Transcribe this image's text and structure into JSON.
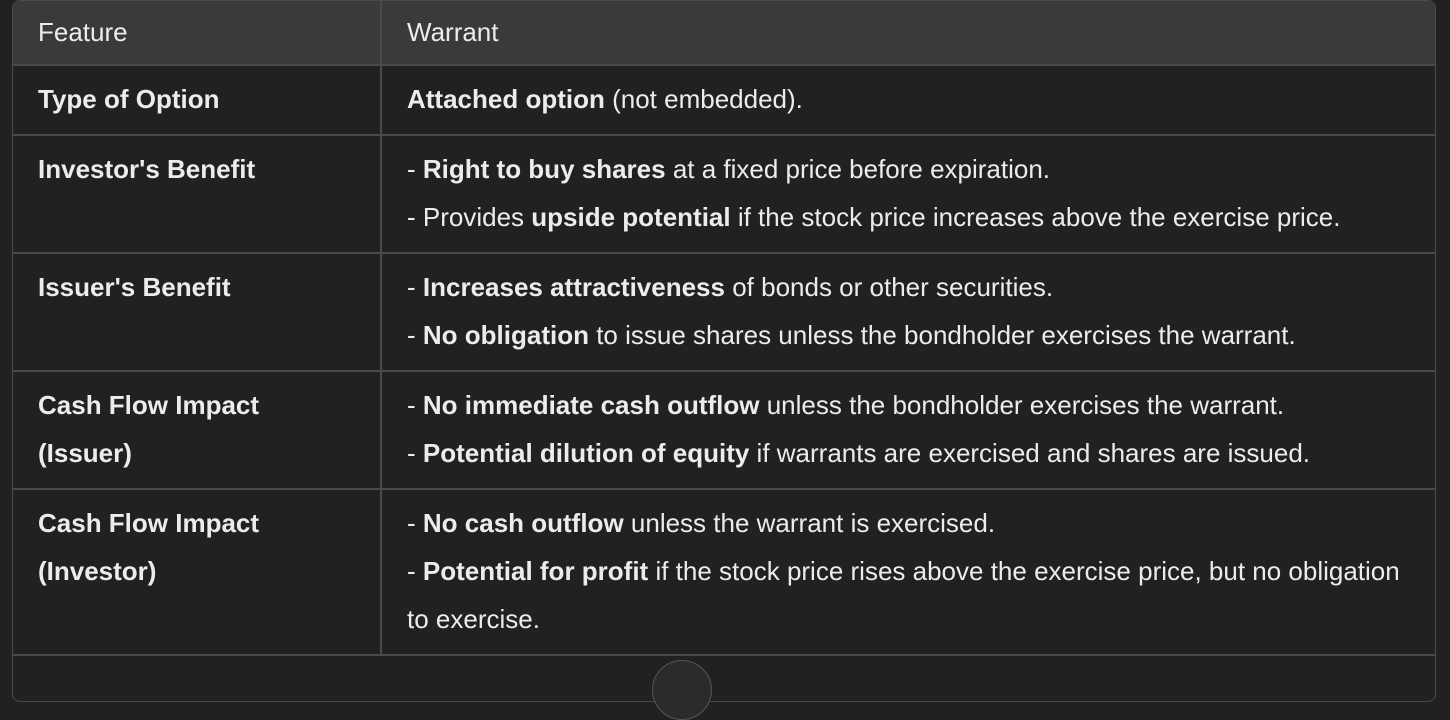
{
  "table": {
    "headers": [
      "Feature",
      "Warrant"
    ],
    "rows": [
      {
        "feature": "Type of Option",
        "lines": [
          [
            {
              "b": "Attached option"
            },
            {
              "t": " (not embedded)."
            }
          ]
        ]
      },
      {
        "feature": "Investor's Benefit",
        "lines": [
          [
            {
              "t": "- "
            },
            {
              "b": "Right to buy shares"
            },
            {
              "t": " at a fixed price before expiration."
            }
          ],
          [
            {
              "t": "- Provides "
            },
            {
              "b": "upside potential"
            },
            {
              "t": " if the stock price increases above the exercise price."
            }
          ]
        ]
      },
      {
        "feature": "Issuer's Benefit",
        "lines": [
          [
            {
              "t": "- "
            },
            {
              "b": "Increases attractiveness"
            },
            {
              "t": " of bonds or other securities."
            }
          ],
          [
            {
              "t": "- "
            },
            {
              "b": "No obligation"
            },
            {
              "t": " to issue shares unless the bondholder exercises the warrant."
            }
          ]
        ]
      },
      {
        "feature": "Cash Flow Impact (Issuer)",
        "lines": [
          [
            {
              "t": "- "
            },
            {
              "b": "No immediate cash outflow"
            },
            {
              "t": " unless the bondholder exercises the warrant."
            }
          ],
          [
            {
              "t": "- "
            },
            {
              "b": "Potential dilution of equity"
            },
            {
              "t": " if warrants are exercised and shares are issued."
            }
          ]
        ]
      },
      {
        "feature": "Cash Flow Impact (Investor)",
        "lines": [
          [
            {
              "t": "- "
            },
            {
              "b": "No cash outflow"
            },
            {
              "t": " unless the warrant is exercised."
            }
          ],
          [
            {
              "t": "- "
            },
            {
              "b": "Potential for profit"
            },
            {
              "t": " if the stock price rises above the exercise price, but no obligation to exercise."
            }
          ]
        ]
      }
    ]
  }
}
